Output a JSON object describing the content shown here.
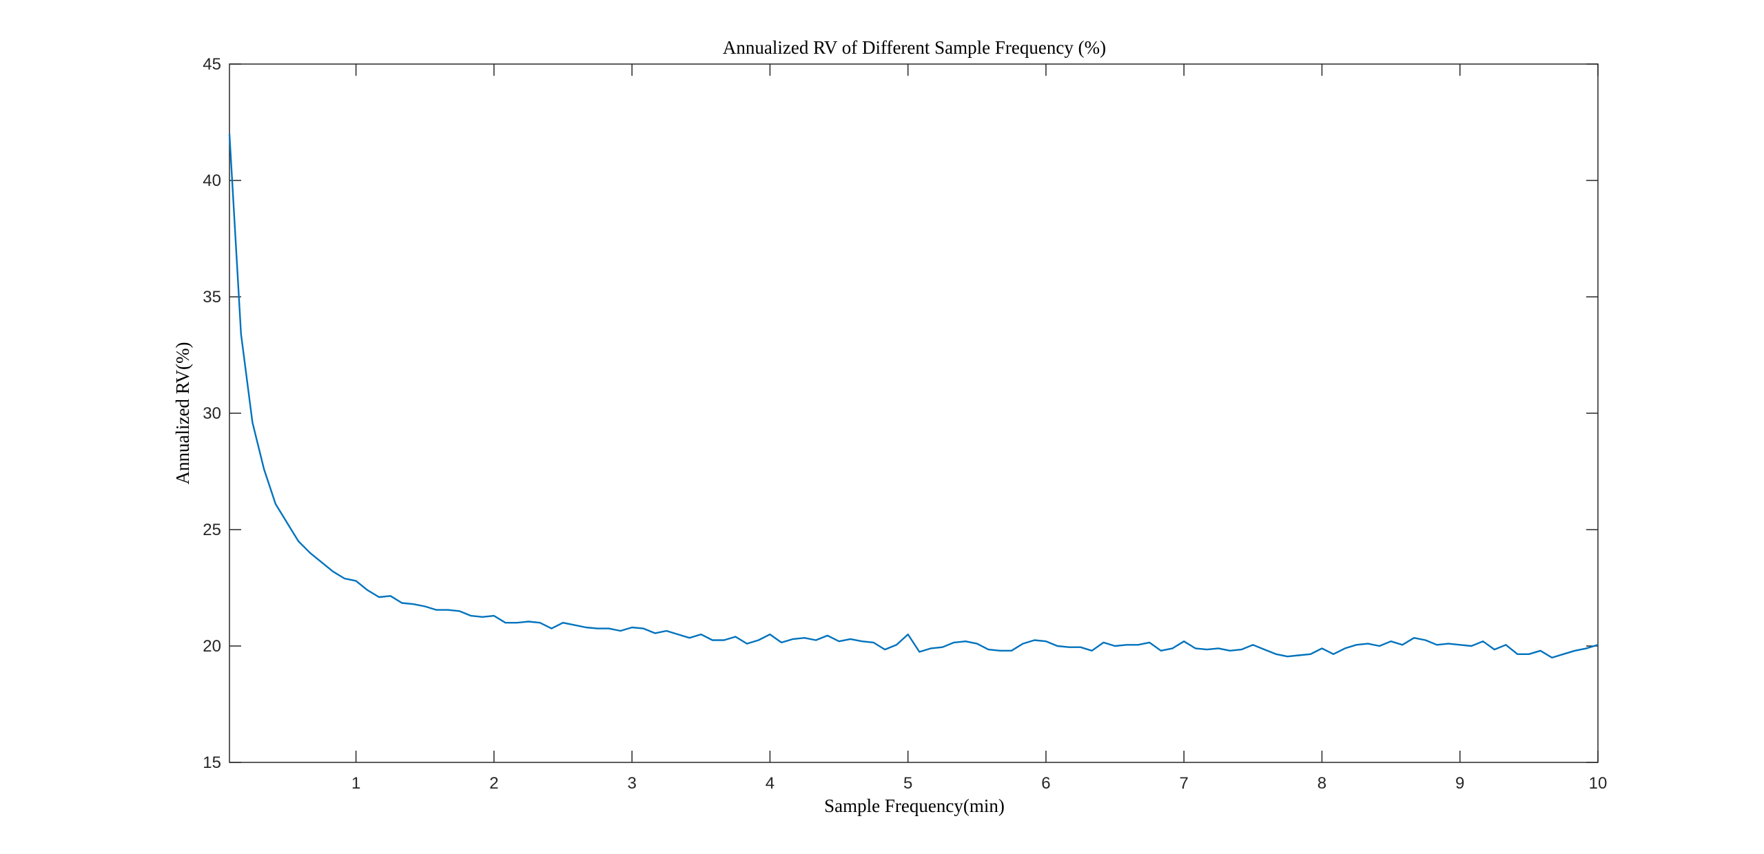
{
  "chart_data": {
    "type": "line",
    "title": "Annualized RV of Different Sample Frequency (%)",
    "xlabel": "Sample Frequency(min)",
    "ylabel": "Annualized RV(%)",
    "xlim": [
      0.083,
      10
    ],
    "ylim": [
      15,
      45
    ],
    "xticks": [
      1,
      2,
      3,
      4,
      5,
      6,
      7,
      8,
      9,
      10
    ],
    "yticks": [
      15,
      20,
      25,
      30,
      35,
      40,
      45
    ],
    "grid": false,
    "colors": {
      "line": "#0072BD",
      "axes": "#262626",
      "background": "#ffffff"
    },
    "series": [
      {
        "x": [
          0.083,
          0.167,
          0.25,
          0.333,
          0.417,
          0.5,
          0.583,
          0.667,
          0.75,
          0.833,
          0.917,
          1.0,
          1.083,
          1.167,
          1.25,
          1.333,
          1.417,
          1.5,
          1.583,
          1.667,
          1.75,
          1.833,
          1.917,
          2.0,
          2.083,
          2.167,
          2.25,
          2.333,
          2.417,
          2.5,
          2.583,
          2.667,
          2.75,
          2.833,
          2.917,
          3.0,
          3.083,
          3.167,
          3.25,
          3.333,
          3.417,
          3.5,
          3.583,
          3.667,
          3.75,
          3.833,
          3.917,
          4.0,
          4.083,
          4.167,
          4.25,
          4.333,
          4.417,
          4.5,
          4.583,
          4.667,
          4.75,
          4.833,
          4.917,
          5.0,
          5.083,
          5.167,
          5.25,
          5.333,
          5.417,
          5.5,
          5.583,
          5.667,
          5.75,
          5.833,
          5.917,
          6.0,
          6.083,
          6.167,
          6.25,
          6.333,
          6.417,
          6.5,
          6.583,
          6.667,
          6.75,
          6.833,
          6.917,
          7.0,
          7.083,
          7.167,
          7.25,
          7.333,
          7.417,
          7.5,
          7.583,
          7.667,
          7.75,
          7.833,
          7.917,
          8.0,
          8.083,
          8.167,
          8.25,
          8.333,
          8.417,
          8.5,
          8.583,
          8.667,
          8.75,
          8.833,
          8.917,
          9.0,
          9.083,
          9.167,
          9.25,
          9.333,
          9.417,
          9.5,
          9.583,
          9.667,
          9.75,
          9.833,
          9.917,
          10.0
        ],
        "values": [
          42.0,
          33.4,
          29.6,
          27.6,
          26.1,
          25.3,
          24.5,
          24.0,
          23.6,
          23.2,
          22.9,
          22.8,
          22.4,
          22.1,
          22.15,
          21.85,
          21.8,
          21.7,
          21.55,
          21.55,
          21.5,
          21.3,
          21.25,
          21.3,
          21.0,
          21.0,
          21.05,
          21.0,
          20.75,
          21.0,
          20.9,
          20.8,
          20.75,
          20.75,
          20.65,
          20.8,
          20.75,
          20.55,
          20.65,
          20.5,
          20.35,
          20.5,
          20.25,
          20.25,
          20.4,
          20.1,
          20.25,
          20.5,
          20.15,
          20.3,
          20.35,
          20.25,
          20.45,
          20.2,
          20.3,
          20.2,
          20.15,
          19.85,
          20.05,
          20.5,
          19.75,
          19.9,
          19.95,
          20.15,
          20.2,
          20.1,
          19.85,
          19.8,
          19.8,
          20.1,
          20.25,
          20.2,
          20.0,
          19.95,
          19.95,
          19.8,
          20.15,
          20.0,
          20.05,
          20.05,
          20.15,
          19.8,
          19.9,
          20.2,
          19.9,
          19.85,
          19.9,
          19.8,
          19.85,
          20.05,
          19.85,
          19.65,
          19.55,
          19.6,
          19.65,
          19.9,
          19.65,
          19.9,
          20.05,
          20.1,
          20.0,
          20.2,
          20.05,
          20.35,
          20.25,
          20.05,
          20.1,
          20.05,
          20.0,
          20.2,
          19.85,
          20.05,
          19.65,
          19.65,
          19.8,
          19.5,
          19.65,
          19.8,
          19.9,
          20.05
        ]
      }
    ]
  }
}
